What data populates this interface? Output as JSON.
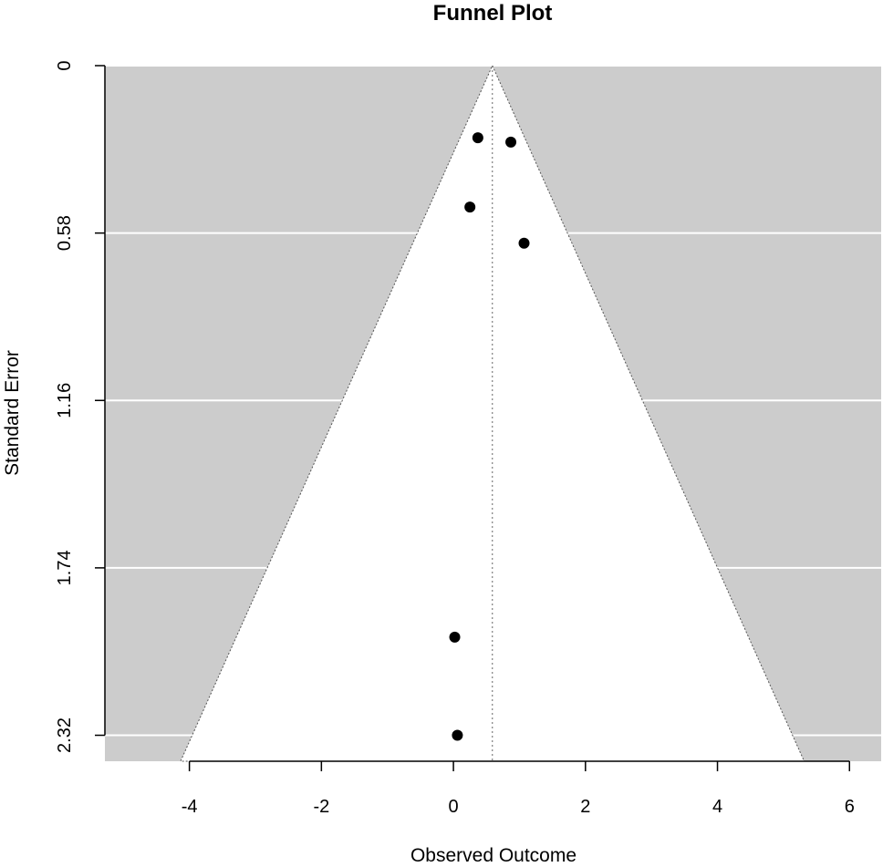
{
  "chart_data": {
    "type": "scatter",
    "title": "Funnel Plot",
    "xlabel": "Observed Outcome",
    "ylabel": "Standard Error",
    "xlim": [
      -5.28,
      6.48
    ],
    "ylim": [
      2.41,
      0
    ],
    "x_ticks": [
      -4,
      -2,
      0,
      2,
      4,
      6
    ],
    "x_tick_labels": [
      "-4",
      "-2",
      "0",
      "2",
      "4",
      "6"
    ],
    "y_ticks": [
      0,
      0.58,
      1.16,
      1.74,
      2.32
    ],
    "y_tick_labels": [
      "0",
      "0.58",
      "1.16",
      "1.74",
      "2.32"
    ],
    "y_reversed": true,
    "grid": true,
    "pooled_estimate": 0.59,
    "funnel_z": 1.96,
    "points": [
      {
        "x": 0.37,
        "y": 0.25
      },
      {
        "x": 0.87,
        "y": 0.265
      },
      {
        "x": 0.25,
        "y": 0.49
      },
      {
        "x": 1.07,
        "y": 0.615
      },
      {
        "x": 0.02,
        "y": 1.98
      },
      {
        "x": 0.06,
        "y": 2.32
      }
    ],
    "colors": {
      "background": "#cccccc",
      "funnel": "#ffffff",
      "point": "#000000",
      "grid": "#ffffff"
    }
  }
}
